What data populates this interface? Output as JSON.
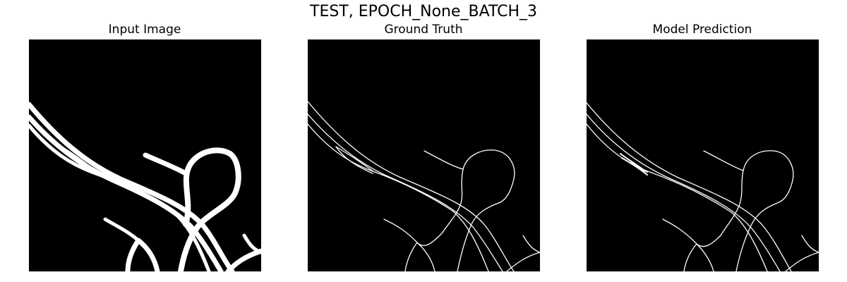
{
  "figure": {
    "title": "TEST, EPOCH_None_BATCH_3"
  },
  "panels": [
    {
      "title": "Input Image"
    },
    {
      "title": "Ground Truth"
    },
    {
      "title": "Model Prediction"
    }
  ],
  "colors": {
    "background": "#000000",
    "foreground": "#ffffff",
    "page": "#ffffff"
  }
}
